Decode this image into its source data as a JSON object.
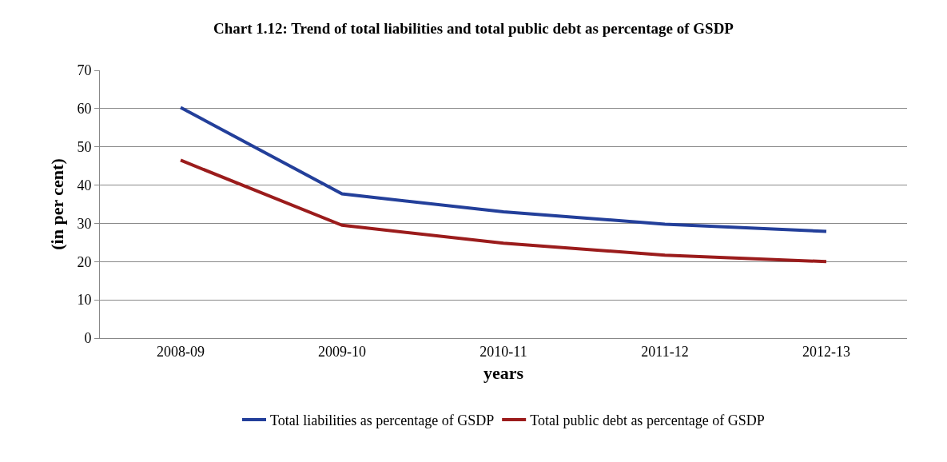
{
  "chart_data": {
    "type": "line",
    "title": "Chart 1.12: Trend of total liabilities and total public debt as percentage of GSDP",
    "xlabel": "years",
    "ylabel": "(in per cent)",
    "categories": [
      "2008-09",
      "2009-10",
      "2010-11",
      "2011-12",
      "2012-13"
    ],
    "series": [
      {
        "name": "Total liabilities as percentage of GSDP",
        "color": "#233f9a",
        "values": [
          60.3,
          37.7,
          33.0,
          29.8,
          27.9
        ]
      },
      {
        "name": "Total public debt as percentage of GSDP",
        "color": "#9b1c1c",
        "values": [
          46.5,
          29.5,
          24.8,
          21.7,
          20.0
        ]
      }
    ],
    "ylim": [
      0,
      70
    ],
    "yticks": [
      0,
      10,
      20,
      30,
      40,
      50,
      60,
      70
    ],
    "grid": "y",
    "legend": "bottom",
    "marker": "none",
    "line_style": "solid"
  }
}
